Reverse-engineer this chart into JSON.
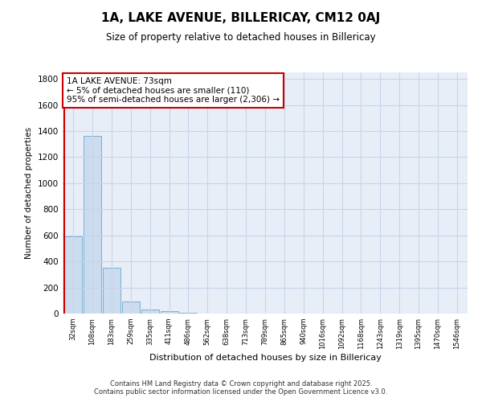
{
  "title1": "1A, LAKE AVENUE, BILLERICAY, CM12 0AJ",
  "title2": "Size of property relative to detached houses in Billericay",
  "xlabel": "Distribution of detached houses by size in Billericay",
  "ylabel": "Number of detached properties",
  "categories": [
    "32sqm",
    "108sqm",
    "183sqm",
    "259sqm",
    "335sqm",
    "411sqm",
    "486sqm",
    "562sqm",
    "638sqm",
    "713sqm",
    "789sqm",
    "865sqm",
    "940sqm",
    "1016sqm",
    "1092sqm",
    "1168sqm",
    "1243sqm",
    "1319sqm",
    "1395sqm",
    "1470sqm",
    "1546sqm"
  ],
  "values": [
    590,
    1360,
    350,
    95,
    32,
    18,
    5,
    0,
    0,
    0,
    0,
    0,
    0,
    0,
    0,
    0,
    0,
    0,
    0,
    0,
    0
  ],
  "bar_color": "#ccdcef",
  "bar_edge_color": "#7bafd4",
  "vline_color": "#cc0000",
  "annotation_text": "1A LAKE AVENUE: 73sqm\n← 5% of detached houses are smaller (110)\n95% of semi-detached houses are larger (2,306) →",
  "annotation_box_color": "white",
  "annotation_box_edge_color": "#cc0000",
  "ylim": [
    0,
    1850
  ],
  "yticks": [
    0,
    200,
    400,
    600,
    800,
    1000,
    1200,
    1400,
    1600,
    1800
  ],
  "grid_color": "#c8d4e8",
  "background_color": "#e8eef8",
  "footer1": "Contains HM Land Registry data © Crown copyright and database right 2025.",
  "footer2": "Contains public sector information licensed under the Open Government Licence v3.0."
}
